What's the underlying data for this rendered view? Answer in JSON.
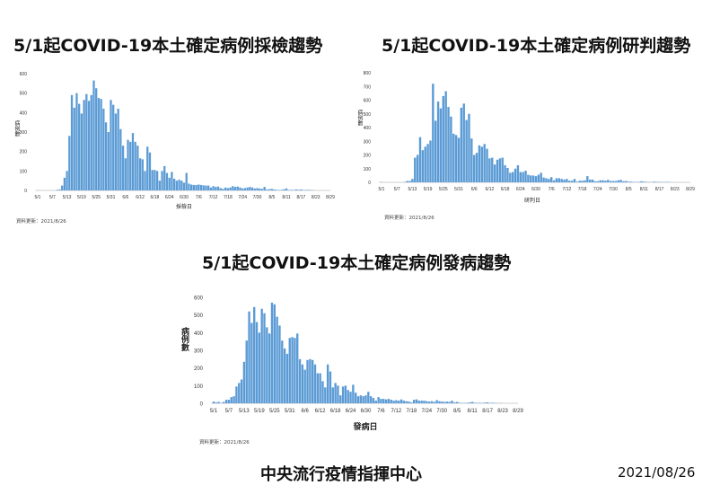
{
  "footer": {
    "agency": "中央流行疫情指揮中心",
    "date": "2021/08/26"
  },
  "colors": {
    "bar": "#5b9bd5",
    "axis": "#bfbfbf"
  },
  "chart_data": [
    {
      "type": "bar",
      "title": "5/1起COVID-19本土確定病例採檢趨勢",
      "xlabel": "採檢日",
      "ylabel": "病例數",
      "ylim": [
        0,
        600
      ],
      "yticks": [
        0,
        100,
        200,
        300,
        400,
        500,
        600
      ],
      "grid": false,
      "note": "資料更新：2021/8/26",
      "xticks": [
        "5/1",
        "5/7",
        "5/13",
        "5/19",
        "5/25",
        "5/31",
        "6/6",
        "6/12",
        "6/18",
        "6/24",
        "6/30",
        "7/6",
        "7/12",
        "7/18",
        "7/24",
        "7/30",
        "8/5",
        "8/11",
        "8/17",
        "8/23",
        "8/29"
      ],
      "values": [
        0,
        0,
        0,
        0,
        0,
        0,
        0,
        0,
        3,
        5,
        25,
        65,
        100,
        280,
        490,
        425,
        500,
        445,
        395,
        465,
        495,
        460,
        490,
        565,
        525,
        475,
        470,
        420,
        350,
        300,
        465,
        440,
        395,
        420,
        315,
        230,
        165,
        260,
        250,
        295,
        250,
        230,
        165,
        160,
        100,
        225,
        195,
        105,
        105,
        100,
        50,
        100,
        125,
        90,
        65,
        95,
        60,
        50,
        55,
        50,
        40,
        90,
        35,
        30,
        28,
        28,
        30,
        28,
        26,
        25,
        25,
        15,
        22,
        18,
        20,
        12,
        8,
        15,
        12,
        15,
        22,
        18,
        20,
        15,
        10,
        12,
        15,
        18,
        15,
        10,
        12,
        10,
        8,
        18,
        5,
        6,
        8,
        5,
        3,
        2,
        3,
        6,
        10,
        2,
        3,
        2,
        5,
        3,
        5,
        2,
        2,
        3,
        2,
        1,
        0,
        0,
        0,
        0
      ]
    },
    {
      "type": "bar",
      "title": "5/1起COVID-19本土確定病例研判趨勢",
      "xlabel": "研判日",
      "ylabel": "病例數",
      "ylim": [
        0,
        800
      ],
      "yticks": [
        0,
        100,
        200,
        300,
        400,
        500,
        600,
        700,
        800
      ],
      "grid": false,
      "note": "資料更新：2021/8/26",
      "xticks": [
        "5/1",
        "5/7",
        "5/13",
        "5/19",
        "5/25",
        "5/31",
        "6/6",
        "6/12",
        "6/18",
        "6/24",
        "6/30",
        "7/6",
        "7/12",
        "7/18",
        "7/24",
        "7/30",
        "8/5",
        "8/11",
        "8/17",
        "8/23",
        "8/29"
      ],
      "values": [
        2,
        0,
        0,
        0,
        0,
        0,
        0,
        0,
        0,
        3,
        10,
        10,
        25,
        180,
        200,
        330,
        235,
        260,
        280,
        305,
        720,
        450,
        590,
        540,
        630,
        665,
        550,
        480,
        355,
        345,
        325,
        545,
        575,
        455,
        500,
        320,
        200,
        215,
        270,
        260,
        280,
        245,
        175,
        180,
        130,
        165,
        175,
        180,
        125,
        105,
        70,
        75,
        100,
        125,
        75,
        75,
        85,
        55,
        50,
        50,
        45,
        55,
        70,
        35,
        30,
        25,
        38,
        15,
        30,
        30,
        25,
        20,
        25,
        12,
        12,
        25,
        5,
        12,
        12,
        15,
        45,
        20,
        20,
        8,
        8,
        15,
        15,
        12,
        18,
        10,
        10,
        10,
        15,
        18,
        8,
        10,
        5,
        5,
        3,
        2,
        3,
        8,
        5,
        3,
        2,
        2,
        5,
        3,
        3,
        2,
        2,
        3,
        2,
        0,
        0,
        0,
        0,
        0
      ]
    },
    {
      "type": "bar",
      "title": "5/1起COVID-19本土確定病例發病趨勢",
      "xlabel": "發病日",
      "ylabel": "病例數",
      "ylim": [
        0,
        600
      ],
      "yticks": [
        0,
        100,
        200,
        300,
        400,
        500,
        600
      ],
      "grid": false,
      "note": "資料更新：2021/8/26",
      "xticks": [
        "5/1",
        "5/7",
        "5/13",
        "5/19",
        "5/25",
        "5/31",
        "6/6",
        "6/12",
        "6/18",
        "6/24",
        "6/30",
        "7/6",
        "7/12",
        "7/18",
        "7/24",
        "7/30",
        "8/5",
        "8/11",
        "8/17",
        "8/23",
        "8/29"
      ],
      "values": [
        10,
        5,
        8,
        2,
        8,
        20,
        20,
        35,
        40,
        95,
        115,
        135,
        235,
        355,
        520,
        455,
        545,
        460,
        400,
        535,
        510,
        430,
        395,
        570,
        560,
        490,
        440,
        355,
        310,
        280,
        370,
        375,
        370,
        395,
        250,
        220,
        190,
        245,
        250,
        245,
        220,
        170,
        170,
        125,
        90,
        220,
        180,
        90,
        115,
        100,
        45,
        95,
        100,
        75,
        65,
        105,
        60,
        40,
        45,
        40,
        45,
        65,
        40,
        30,
        15,
        35,
        25,
        25,
        22,
        25,
        20,
        15,
        18,
        15,
        22,
        15,
        12,
        10,
        5,
        20,
        22,
        15,
        15,
        15,
        12,
        10,
        12,
        8,
        18,
        12,
        10,
        8,
        10,
        8,
        15,
        5,
        8,
        3,
        2,
        2,
        3,
        5,
        8,
        3,
        2,
        3,
        2,
        4,
        5,
        2,
        3,
        2,
        1,
        1,
        0,
        0,
        0,
        0
      ]
    }
  ]
}
